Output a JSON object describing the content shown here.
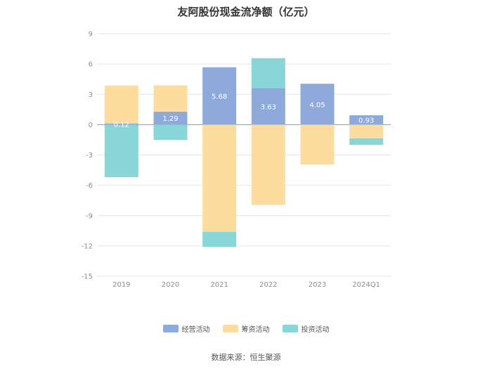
{
  "chart_data": {
    "type": "bar",
    "stacked": true,
    "title": "友阿股份现金流净额（亿元）",
    "categories": [
      "2019",
      "2020",
      "2021",
      "2022",
      "2023",
      "2024Q1"
    ],
    "yticks": [
      "9",
      "6",
      "3",
      "0",
      "-3",
      "-6",
      "-9",
      "-12",
      "-15"
    ],
    "ylim": [
      -15,
      9
    ],
    "grid": true,
    "legend_position": "bottom",
    "series": [
      {
        "name": "经营活动",
        "color": "#8eaadb",
        "values": [
          0.12,
          1.29,
          5.68,
          3.63,
          4.05,
          0.93
        ],
        "labels": [
          "0.12",
          "1.29",
          "5.68",
          "3.63",
          "4.05",
          "0.93"
        ]
      },
      {
        "name": "筹资活动",
        "color": "#fddc9f",
        "values": [
          3.75,
          2.6,
          -10.6,
          -7.95,
          -3.95,
          -1.35
        ]
      },
      {
        "name": "投资活动",
        "color": "#88d6d8",
        "values": [
          -5.2,
          -1.5,
          -1.5,
          2.95,
          0,
          -0.65
        ]
      }
    ]
  },
  "source": "数据来源：恒生聚源"
}
